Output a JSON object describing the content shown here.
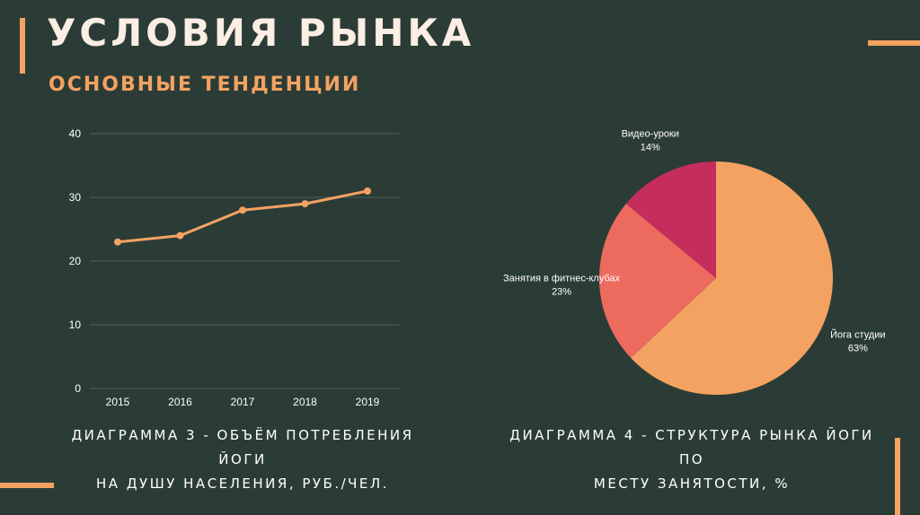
{
  "title": "УСЛОВИЯ РЫНКА",
  "subtitle": "ОСНОВНЫЕ ТЕНДЕНЦИИ",
  "colors": {
    "background": "#2b3c36",
    "accent": "#f4a261",
    "title": "#fbeee4"
  },
  "chart_data": [
    {
      "type": "line",
      "x": [
        "2015",
        "2016",
        "2017",
        "2018",
        "2019"
      ],
      "series": [
        {
          "values": [
            23,
            24,
            28,
            29,
            31
          ],
          "color": "#f4a261"
        }
      ],
      "ylim": [
        0,
        40
      ],
      "yticks": [
        0,
        10,
        20,
        30,
        40
      ],
      "grid": true,
      "caption": [
        "ДИАГРАММА 3 - ОБЪЁМ ПОТРЕБЛЕНИЯ ЙОГИ",
        "НА ДУШУ НАСЕЛЕНИЯ, РУБ./ЧЕЛ."
      ]
    },
    {
      "type": "pie",
      "slices": [
        {
          "name": "Йога студии",
          "value": 63,
          "label": "63%",
          "color": "#f4a261"
        },
        {
          "name": "Занятия в фитнес-клубах",
          "value": 23,
          "label": "23%",
          "color": "#ec6a5e"
        },
        {
          "name": "Видео-уроки",
          "value": 14,
          "label": "14%",
          "color": "#c52d5c"
        }
      ],
      "caption": [
        "ДИАГРАММА 4 - СТРУКТУРА РЫНКА ЙОГИ ПО",
        "МЕСТУ ЗАНЯТОСТИ, %"
      ]
    }
  ]
}
